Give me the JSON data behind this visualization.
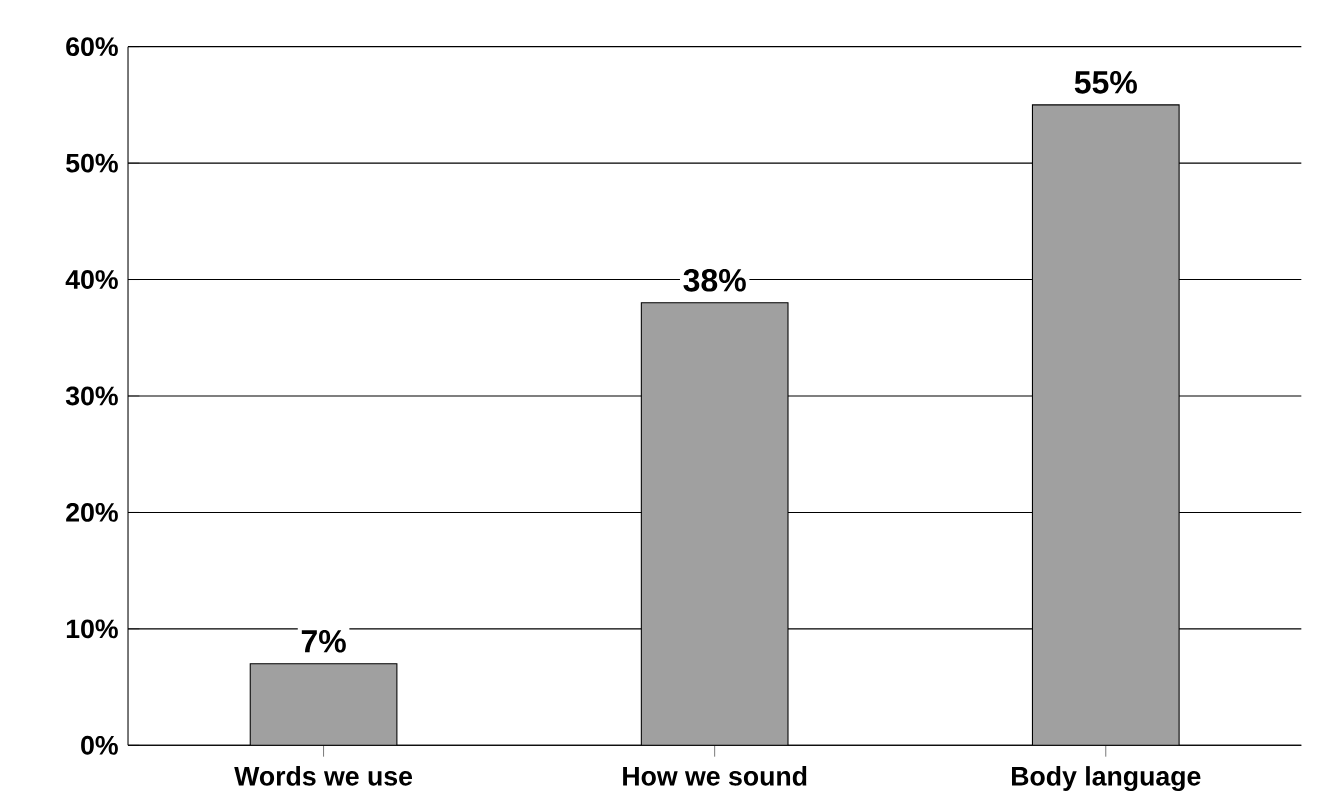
{
  "chart_data": {
    "type": "bar",
    "categories": [
      "Words we use",
      "How we sound",
      "Body language"
    ],
    "values": [
      7,
      38,
      55
    ],
    "value_labels": [
      "7%",
      "38%",
      "55%"
    ],
    "color": "#a0a0a0",
    "ylim": [
      0,
      60
    ],
    "yticks": [
      {
        "value": 0,
        "label": "0%"
      },
      {
        "value": 10,
        "label": "10%"
      },
      {
        "value": 20,
        "label": "20%"
      },
      {
        "value": 30,
        "label": "30%"
      },
      {
        "value": 40,
        "label": "40%"
      },
      {
        "value": 50,
        "label": "50%"
      },
      {
        "value": 60,
        "label": "60%"
      }
    ],
    "grid": "y"
  }
}
